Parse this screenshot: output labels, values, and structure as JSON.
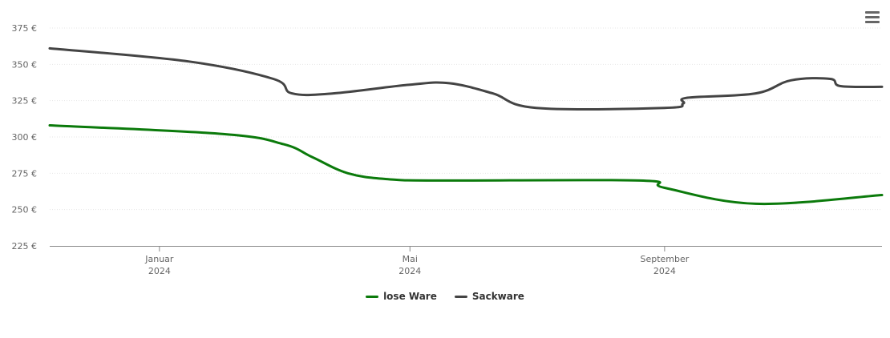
{
  "chart_data": {
    "type": "line",
    "title": "",
    "xlabel": "",
    "ylabel": "",
    "ylim": [
      225,
      375
    ],
    "y_ticks": [
      {
        "value": 375,
        "label": "375 €"
      },
      {
        "value": 350,
        "label": "350 €"
      },
      {
        "value": 325,
        "label": "325 €"
      },
      {
        "value": 300,
        "label": "300 €"
      },
      {
        "value": 275,
        "label": "275 €"
      },
      {
        "value": 250,
        "label": "250 €"
      },
      {
        "value": 225,
        "label": "225 €"
      }
    ],
    "xlim": [
      "2023-11-09",
      "2024-12-15"
    ],
    "x_ticks": [
      {
        "date": "2024-01-01",
        "line1": "Januar",
        "line2": "2024"
      },
      {
        "date": "2024-05-01",
        "line1": "Mai",
        "line2": "2024"
      },
      {
        "date": "2024-09-01",
        "line1": "September",
        "line2": "2024"
      }
    ],
    "grid": true,
    "legend_position": "bottom-center",
    "series": [
      {
        "name": "lose Ware",
        "color": "#0b7a0b",
        "points": [
          {
            "x": "2023-11-09",
            "y": 308
          },
          {
            "x": "2024-02-01",
            "y": 302
          },
          {
            "x": "2024-03-01",
            "y": 295
          },
          {
            "x": "2024-03-15",
            "y": 286
          },
          {
            "x": "2024-04-01",
            "y": 275
          },
          {
            "x": "2024-04-20",
            "y": 271
          },
          {
            "x": "2024-05-15",
            "y": 270
          },
          {
            "x": "2024-08-20",
            "y": 270
          },
          {
            "x": "2024-09-01",
            "y": 265
          },
          {
            "x": "2024-10-15",
            "y": 254
          },
          {
            "x": "2024-12-15",
            "y": 260
          }
        ]
      },
      {
        "name": "Sackware",
        "color": "#444444",
        "points": [
          {
            "x": "2023-11-09",
            "y": 361
          },
          {
            "x": "2024-01-15",
            "y": 352
          },
          {
            "x": "2024-02-25",
            "y": 340
          },
          {
            "x": "2024-03-05",
            "y": 330
          },
          {
            "x": "2024-03-25",
            "y": 330
          },
          {
            "x": "2024-05-01",
            "y": 336
          },
          {
            "x": "2024-05-20",
            "y": 337
          },
          {
            "x": "2024-06-10",
            "y": 330
          },
          {
            "x": "2024-07-01",
            "y": 320
          },
          {
            "x": "2024-09-01",
            "y": 320
          },
          {
            "x": "2024-09-10",
            "y": 323
          },
          {
            "x": "2024-09-12",
            "y": 327
          },
          {
            "x": "2024-10-15",
            "y": 330
          },
          {
            "x": "2024-11-01",
            "y": 339
          },
          {
            "x": "2024-11-20",
            "y": 340
          },
          {
            "x": "2024-11-25",
            "y": 335
          },
          {
            "x": "2024-12-15",
            "y": 334.5
          }
        ]
      }
    ]
  },
  "ui": {
    "menu_icon": "hamburger-menu-icon"
  }
}
